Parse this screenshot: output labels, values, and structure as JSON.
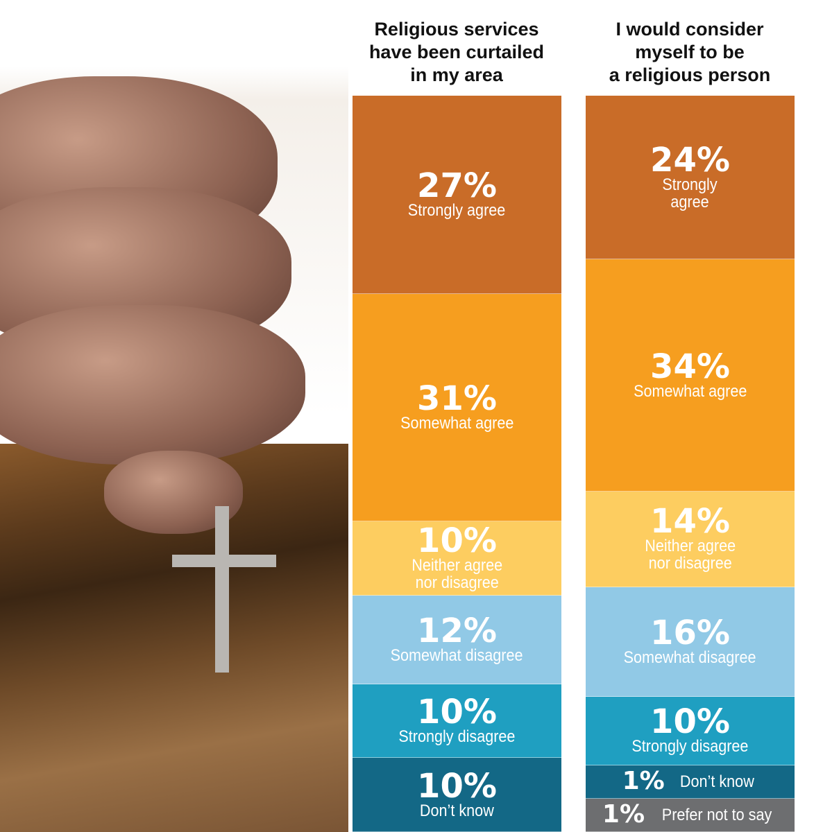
{
  "chart_data": [
    {
      "type": "stacked-bar",
      "title": "Religious services\nhave been curtailed\nin my area",
      "categories": [
        "Strongly agree",
        "Somewhat agree",
        "Neither agree\nnor disagree",
        "Somewhat disagree",
        "Strongly disagree",
        "Don’t know"
      ],
      "values": [
        27,
        31,
        10,
        12,
        10,
        10
      ],
      "colors": [
        "#c96c28",
        "#f69e1f",
        "#fdcd60",
        "#91c9e6",
        "#1f9fc1",
        "#136886"
      ]
    },
    {
      "type": "stacked-bar",
      "title": "I would consider\nmyself to be\na religious person",
      "categories": [
        "Strongly\nagree",
        "Somewhat agree",
        "Neither agree\nnor disagree",
        "Somewhat disagree",
        "Strongly disagree",
        "Don’t know",
        "Prefer not to say"
      ],
      "values": [
        24,
        34,
        14,
        16,
        10,
        1,
        1
      ],
      "colors": [
        "#c96c28",
        "#f69e1f",
        "#fdcd60",
        "#91c9e6",
        "#1f9fc1",
        "#136886",
        "#6d6e70"
      ]
    }
  ]
}
